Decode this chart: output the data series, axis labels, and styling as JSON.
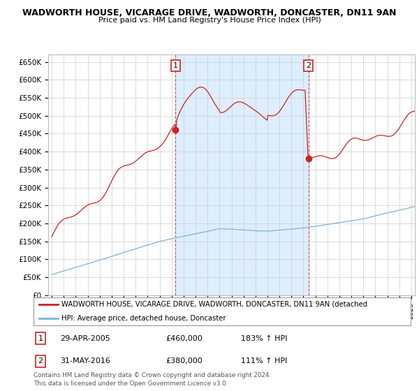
{
  "title": "WADWORTH HOUSE, VICARAGE DRIVE, WADWORTH, DONCASTER, DN11 9AN",
  "subtitle": "Price paid vs. HM Land Registry's House Price Index (HPI)",
  "ylabel_ticks": [
    "£0",
    "£50K",
    "£100K",
    "£150K",
    "£200K",
    "£250K",
    "£300K",
    "£350K",
    "£400K",
    "£450K",
    "£500K",
    "£550K",
    "£600K",
    "£650K"
  ],
  "ytick_values": [
    0,
    50000,
    100000,
    150000,
    200000,
    250000,
    300000,
    350000,
    400000,
    450000,
    500000,
    550000,
    600000,
    650000
  ],
  "ylim": [
    0,
    670000
  ],
  "xlim_start": 1994.7,
  "xlim_end": 2025.3,
  "red_color": "#cc2222",
  "blue_color": "#7fb3d3",
  "shade_color": "#ddeeff",
  "sale1_x": 2005.33,
  "sale1_y": 460000,
  "sale2_x": 2016.42,
  "sale2_y": 380000,
  "legend_line1": "WADWORTH HOUSE, VICARAGE DRIVE, WADWORTH, DONCASTER, DN11 9AN (detached",
  "legend_line2": "HPI: Average price, detached house, Doncaster",
  "footnote": "Contains HM Land Registry data © Crown copyright and database right 2024.\nThis data is licensed under the Open Government Licence v3.0.",
  "bg_color": "#ffffff",
  "grid_color": "#cccccc"
}
